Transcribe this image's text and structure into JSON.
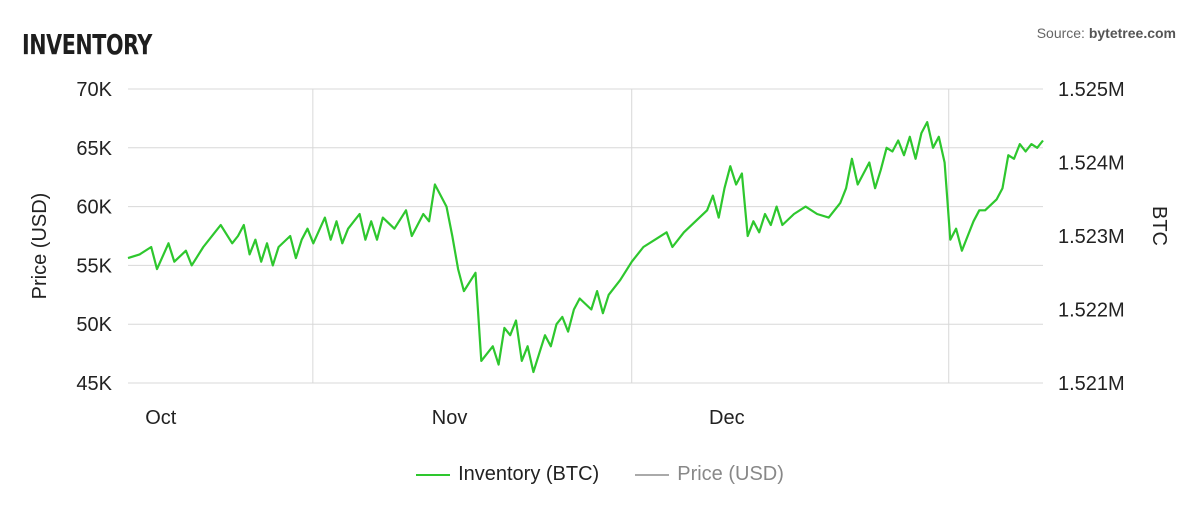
{
  "header": {
    "title": "INVENTORY",
    "source_label": "Source:",
    "source_name": "bytetree.com"
  },
  "colors": {
    "inventory": "#2ec72e",
    "price": "#aaaaaa",
    "grid": "#d8d8d8",
    "axis_text": "#222222",
    "legend_inactive": "#888888"
  },
  "legend": [
    {
      "label": "Inventory (BTC)",
      "color": "#2ec72e",
      "active": true
    },
    {
      "label": "Price (USD)",
      "color": "#aaaaaa",
      "active": false
    }
  ],
  "chart_data": {
    "type": "line",
    "title": "INVENTORY",
    "x_ticks": [
      "Oct",
      "Nov",
      "Dec"
    ],
    "left_axis": {
      "label": "Price (USD)",
      "range": [
        45000,
        70000
      ],
      "ticks": [
        "45K",
        "50K",
        "55K",
        "60K",
        "65K",
        "70K"
      ]
    },
    "right_axis": {
      "label": "BTC",
      "range": [
        1521000,
        1525000
      ],
      "ticks": [
        "1.521M",
        "1.522M",
        "1.523M",
        "1.524M",
        "1.525M"
      ]
    },
    "grid": true,
    "legend_position": "bottom",
    "x_range_days": 99,
    "x_tick_days": [
      1,
      32,
      62
    ],
    "series": [
      {
        "name": "Inventory (BTC)",
        "axis": "right",
        "color": "#2ec72e",
        "points": [
          [
            0,
            1522700
          ],
          [
            2,
            1522750
          ],
          [
            4,
            1522850
          ],
          [
            5,
            1522550
          ],
          [
            7,
            1522900
          ],
          [
            8,
            1522650
          ],
          [
            10,
            1522800
          ],
          [
            11,
            1522600
          ],
          [
            13,
            1522850
          ],
          [
            15,
            1523050
          ],
          [
            16,
            1523150
          ],
          [
            18,
            1522900
          ],
          [
            19,
            1523000
          ],
          [
            20,
            1523150
          ],
          [
            21,
            1522750
          ],
          [
            22,
            1522950
          ],
          [
            23,
            1522650
          ],
          [
            24,
            1522900
          ],
          [
            25,
            1522600
          ],
          [
            26,
            1522850
          ],
          [
            28,
            1523000
          ],
          [
            29,
            1522700
          ],
          [
            30,
            1522950
          ],
          [
            31,
            1523100
          ],
          [
            32,
            1522900
          ],
          [
            34,
            1523250
          ],
          [
            35,
            1522950
          ],
          [
            36,
            1523200
          ],
          [
            37,
            1522900
          ],
          [
            38,
            1523100
          ],
          [
            40,
            1523300
          ],
          [
            41,
            1522950
          ],
          [
            42,
            1523200
          ],
          [
            43,
            1522950
          ],
          [
            44,
            1523250
          ],
          [
            46,
            1523100
          ],
          [
            48,
            1523350
          ],
          [
            49,
            1523000
          ],
          [
            51,
            1523300
          ],
          [
            52,
            1523200
          ],
          [
            53,
            1523700
          ],
          [
            55,
            1523400
          ],
          [
            56,
            1523000
          ],
          [
            57,
            1522550
          ],
          [
            58,
            1522250
          ],
          [
            60,
            1522500
          ],
          [
            61,
            1521300
          ],
          [
            62,
            1521400
          ],
          [
            63,
            1521500
          ],
          [
            64,
            1521250
          ],
          [
            65,
            1521750
          ],
          [
            66,
            1521650
          ],
          [
            67,
            1521850
          ],
          [
            68,
            1521300
          ],
          [
            69,
            1521500
          ],
          [
            70,
            1521150
          ],
          [
            71,
            1521400
          ],
          [
            72,
            1521650
          ],
          [
            73,
            1521500
          ],
          [
            74,
            1521800
          ],
          [
            75,
            1521900
          ],
          [
            76,
            1521700
          ],
          [
            77,
            1522000
          ],
          [
            78,
            1522150
          ],
          [
            80,
            1522000
          ],
          [
            81,
            1522250
          ],
          [
            82,
            1521950
          ],
          [
            83,
            1522200
          ],
          [
            85,
            1522400
          ],
          [
            87,
            1522650
          ],
          [
            89,
            1522850
          ],
          [
            91,
            1522950
          ],
          [
            93,
            1523050
          ],
          [
            94,
            1522850
          ],
          [
            96,
            1523050
          ],
          [
            98,
            1523200
          ],
          [
            100,
            1523350
          ],
          [
            101,
            1523550
          ],
          [
            102,
            1523250
          ],
          [
            103,
            1523650
          ],
          [
            104,
            1523950
          ],
          [
            105,
            1523700
          ],
          [
            106,
            1523850
          ],
          [
            107,
            1523000
          ],
          [
            108,
            1523200
          ],
          [
            109,
            1523050
          ],
          [
            110,
            1523300
          ],
          [
            111,
            1523150
          ],
          [
            112,
            1523400
          ],
          [
            113,
            1523150
          ],
          [
            115,
            1523300
          ],
          [
            117,
            1523400
          ],
          [
            119,
            1523300
          ],
          [
            121,
            1523250
          ],
          [
            123,
            1523450
          ],
          [
            124,
            1523650
          ],
          [
            125,
            1524050
          ],
          [
            126,
            1523700
          ],
          [
            127,
            1523850
          ],
          [
            128,
            1524000
          ],
          [
            129,
            1523650
          ],
          [
            130,
            1523900
          ],
          [
            131,
            1524200
          ],
          [
            132,
            1524150
          ],
          [
            133,
            1524300
          ],
          [
            134,
            1524100
          ],
          [
            135,
            1524350
          ],
          [
            136,
            1524050
          ],
          [
            137,
            1524400
          ],
          [
            138,
            1524550
          ],
          [
            139,
            1524200
          ],
          [
            140,
            1524350
          ],
          [
            141,
            1524000
          ],
          [
            142,
            1522950
          ],
          [
            143,
            1523100
          ],
          [
            144,
            1522800
          ],
          [
            145,
            1523000
          ],
          [
            146,
            1523200
          ],
          [
            147,
            1523350
          ],
          [
            148,
            1523350
          ],
          [
            150,
            1523500
          ],
          [
            151,
            1523650
          ],
          [
            152,
            1524100
          ],
          [
            153,
            1524050
          ],
          [
            154,
            1524250
          ],
          [
            155,
            1524150
          ],
          [
            156,
            1524250
          ],
          [
            157,
            1524200
          ],
          [
            158,
            1524300
          ]
        ]
      }
    ]
  }
}
